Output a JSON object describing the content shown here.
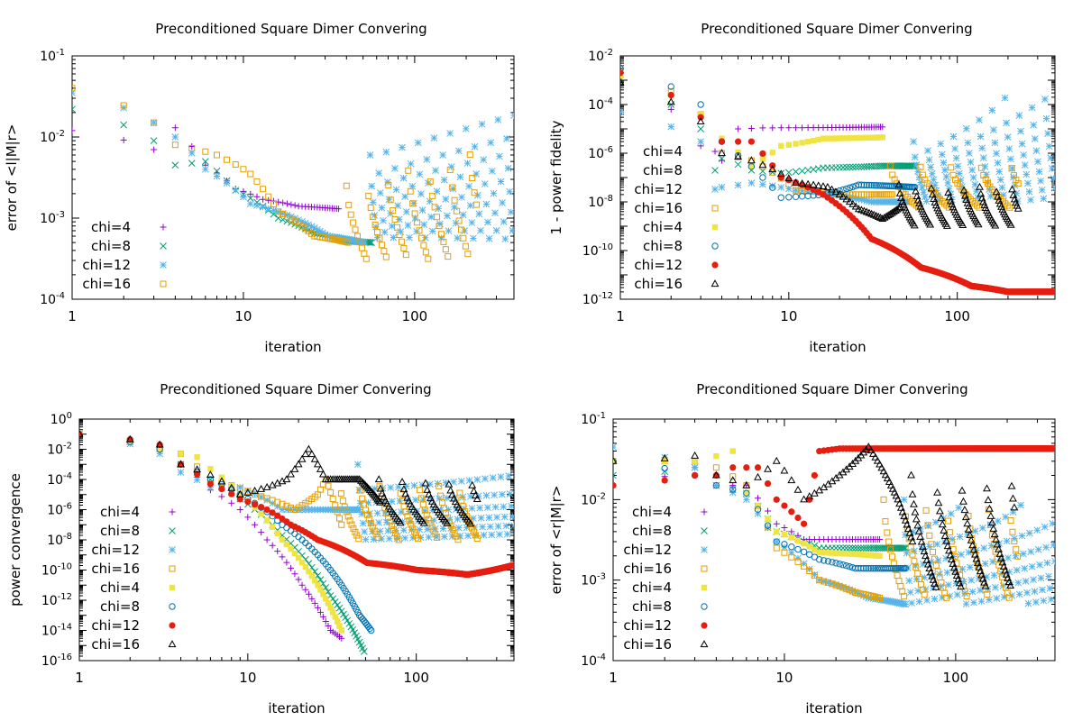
{
  "chart_data": [
    {
      "type": "scatter",
      "title": "Preconditioned Square Dimer Convering",
      "xlabel": "iteration",
      "ylabel": "error of <l|M|r>",
      "xscale": "log",
      "yscale": "log",
      "xlim": [
        1,
        380
      ],
      "ylim": [
        0.0001,
        0.1
      ],
      "xticks": [
        {
          "v": 1,
          "t": "1"
        },
        {
          "v": 10,
          "t": "10"
        },
        {
          "v": 100,
          "t": "100"
        }
      ],
      "yticks": [
        {
          "e": -4
        },
        {
          "e": -3
        },
        {
          "e": -2
        },
        {
          "e": -1
        }
      ],
      "legend_position": "bottom-left",
      "series": [
        {
          "name": "chi=4",
          "marker": "plus",
          "color": "#9400d3",
          "trend": "0:1.2e-2,2:7e-3,3:1.3e-2,5:4.5e-3,8:2.3e-3,12:1.7e-3,20:1.4e-3,35:1.3e-3"
        },
        {
          "name": "chi=8",
          "marker": "x",
          "color": "#009e73",
          "trend": "0:2.2e-2,2:9e-3,3:4.5e-3,5:5e-3,8:2.2e-3,15:1e-3,25:6.5e-4,40:5.2e-4,55:5e-4"
        },
        {
          "name": "chi=12",
          "marker": "star",
          "color": "#56b4e9",
          "trend": "0:3.5e-2,2:1.5e-2,3:1e-2,5:4e-3,10:1.5e-3,30:6e-4,50:5e-4",
          "osc": [
            {
              "s": 55,
              "e": 380,
              "p": 18,
              "hi": 0.006,
              "lo": 0.0005,
              "n": 100,
              "hiEnd": 0.04
            }
          ]
        },
        {
          "name": "chi=16",
          "marker": "square",
          "color": "#e69f00",
          "trend": "0:4e-2,2:1.5e-2,3:8e-3,6:6e-3,10:3.5e-3,15:1.2e-3,25:6e-4,40:5e-4",
          "osc": [
            {
              "s": 40,
              "e": 230,
              "p": 30,
              "hi": 0.0025,
              "lo": 0.0003,
              "n": 60,
              "hiEnd": 0.008
            }
          ]
        }
      ]
    },
    {
      "type": "scatter",
      "title": "Preconditioned Square Dimer Convering",
      "xlabel": "iteration",
      "ylabel": "1 - power fidelity",
      "xscale": "log",
      "yscale": "log",
      "xlim": [
        1,
        380
      ],
      "ylim": [
        1e-12,
        0.01
      ],
      "xticks": [
        {
          "v": 1,
          "t": "1"
        },
        {
          "v": 10,
          "t": "10"
        },
        {
          "v": 100,
          "t": "100"
        }
      ],
      "yticks": [
        {
          "e": -12
        },
        {
          "e": -10
        },
        {
          "e": -8
        },
        {
          "e": -6
        },
        {
          "e": -4
        },
        {
          "e": -2
        }
      ],
      "legend_position": "bottom-left",
      "series": [
        {
          "name": "chi=4",
          "marker": "plus",
          "color": "#9400d3",
          "trend": "0:2e-3,2:2e-6,3:5e-7,4:1e-5,6:1.1e-5,35:1.2e-5"
        },
        {
          "name": "chi=8",
          "marker": "x",
          "color": "#009e73",
          "trend": "0:1e-3,2:1e-5,3:6e-7,5:2e-7,8:1.5e-7,15:2.5e-7,35:3e-7,55:3e-7"
        },
        {
          "name": "chi=12",
          "marker": "star",
          "color": "#56b4e9",
          "trend": "0:5e-5,2:3e-6,3:4e-8,5:6e-8,10:3e-8,30:1e-8,50:1e-8",
          "osc": [
            {
              "s": 55,
              "e": 380,
              "p": 30,
              "hi": 3e-06,
              "lo": 1e-08,
              "n": 100,
              "hiEnd": 0.003
            }
          ]
        },
        {
          "name": "chi=16",
          "marker": "square",
          "color": "#e69f00",
          "trend": "0:3e-3,2:4e-5,3:1e-6,5:5e-7,10:3e-8,20:2e-8,40:2e-8",
          "osc": [
            {
              "s": 40,
              "e": 230,
              "p": 45,
              "hi": 3e-07,
              "lo": 5e-09,
              "n": 60
            }
          ]
        },
        {
          "name": "chi=4",
          "marker": "square_fill",
          "color": "#f0e442",
          "trend": "0:1.5e-3,2:4e-5,3:4e-6,5:3e-7,8:2e-6,15:4e-6,35:4.5e-6"
        },
        {
          "name": "chi=8",
          "marker": "circle",
          "color": "#0072b2",
          "trend": "0:3e-3,2:1e-4,3:3e-6,4:8e-7,6:1e-7,8:1.5e-8,15:2e-8,25:5e-8,55:4e-8"
        },
        {
          "name": "chi=12",
          "marker": "circle_fill",
          "color": "#e51e10",
          "trend": "0:2e-3,2:3e-5,3:3e-6,5:3e-6,8:1e-7,15:2e-8,20:5e-9,30:3e-10,60:2e-11,120:3.5e-12,200:2e-12,370:2e-12"
        },
        {
          "name": "chi=16",
          "marker": "triangle",
          "color": "#000000",
          "trend": "0:8e-4,2:2e-5,3:1e-6,5:5e-7,10:6e-8,16:4e-8,25:5e-9,35:2e-9,45:6e-9",
          "osc": [
            {
              "s": 45,
              "e": 230,
              "p": 25,
              "hi": 5e-08,
              "lo": 1e-09,
              "n": 100
            }
          ]
        }
      ]
    },
    {
      "type": "scatter",
      "title": "Preconditioned Square Dimer Convering",
      "xlabel": "iteration",
      "ylabel": "power convergence",
      "xscale": "log",
      "yscale": "log",
      "xlim": [
        1,
        380
      ],
      "ylim": [
        1e-16,
        1
      ],
      "xticks": [
        {
          "v": 1,
          "t": "1"
        },
        {
          "v": 10,
          "t": "10"
        },
        {
          "v": 100,
          "t": "100"
        }
      ],
      "yticks": [
        {
          "e": -16
        },
        {
          "e": -14
        },
        {
          "e": -12
        },
        {
          "e": -10
        },
        {
          "e": -8
        },
        {
          "e": -6
        },
        {
          "e": -4
        },
        {
          "e": -2
        },
        {
          "e": 0
        }
      ],
      "legend_position": "bottom-left",
      "series": [
        {
          "name": "chi=4",
          "marker": "plus",
          "color": "#9400d3",
          "trend": "0:0.1,2:1e-2,3:1e-3,5:2e-5,8:1e-6,12:1e-8,20:1e-11,30:1e-14,35:3e-15"
        },
        {
          "name": "chi=8",
          "marker": "x",
          "color": "#009e73",
          "trend": "0:0.1,2:1e-2,3:1e-3,5:1e-4,8:5e-6,15:2e-8,30:2e-12,48:4e-16"
        },
        {
          "name": "chi=12",
          "marker": "star",
          "color": "#56b4e9",
          "trend": "0:0.1,2:5e-3,3:3e-4,5:3e-5,8:3e-5,15:1e-6,30:1e-6,45:1e-6",
          "osc": [
            {
              "s": 45,
              "e": 380,
              "p": 17,
              "hi": 0.001,
              "lo": 1e-08,
              "n": 120
            }
          ]
        },
        {
          "name": "chi=16",
          "marker": "square",
          "color": "#e69f00",
          "trend": "0:0.1,2:1e-2,3:5e-3,5:1e-4,10:1e-5,18:1e-6,25:1e-5,28:1e-4,35:1e-7",
          "osc": [
            {
              "s": 35,
              "e": 230,
              "p": 28,
              "hi": 0.0001,
              "lo": 1e-08,
              "n": 80
            }
          ]
        },
        {
          "name": "chi=4",
          "marker": "square_fill",
          "color": "#f0e442",
          "trend": "0:0.1,2:1e-2,3:5e-3,4:3e-3,5:5e-4,8:1e-5,15:1e-8,25:1e-11,35:1e-14"
        },
        {
          "name": "chi=8",
          "marker": "circle",
          "color": "#0072b2",
          "trend": "0:0.1,2:1e-2,3:1e-3,5:1e-4,8:1e-5,15:1e-7,30:1e-10,45:1e-13,53:1e-14"
        },
        {
          "name": "chi=12",
          "marker": "circle_fill",
          "color": "#e51e10",
          "trend": "0:0.1,2:2e-2,3:1e-3,5:5e-5,8:5e-6,12:1e-6,17:1e-7,25:1e-8,50:3e-10,100:1e-10,200:5e-11,370:2e-10"
        },
        {
          "name": "chi=16",
          "marker": "triangle",
          "color": "#000000",
          "trend": "0:0.1,2:2e-2,3:1e-3,5:2e-4,8:1e-5,12:3e-5,16:1e-4,22:1e-2,28:1e-4,45:1e-4,60:3e-6",
          "osc": [
            {
              "s": 60,
              "e": 230,
              "p": 40,
              "hi": 0.0001,
              "lo": 1e-07,
              "n": 60
            }
          ]
        }
      ]
    },
    {
      "type": "scatter",
      "title": "Preconditioned Square Dimer Convering",
      "xlabel": "iteration",
      "ylabel": "error of <r|M|r>",
      "xscale": "log",
      "yscale": "log",
      "xlim": [
        1,
        380
      ],
      "ylim": [
        0.0001,
        0.1
      ],
      "xticks": [
        {
          "v": 1,
          "t": "1"
        },
        {
          "v": 10,
          "t": "10"
        },
        {
          "v": 100,
          "t": "100"
        }
      ],
      "yticks": [
        {
          "e": -4
        },
        {
          "e": -3
        },
        {
          "e": -2
        },
        {
          "e": -1
        }
      ],
      "legend_position": "bottom-left",
      "series": [
        {
          "name": "chi=4",
          "marker": "plus",
          "color": "#9400d3",
          "trend": "0:1.5e-2,2:2.5e-2,3:1.5e-2,5:1.5e-2,8:5e-3,12:3.2e-3,35:3.2e-3"
        },
        {
          "name": "chi=8",
          "marker": "x",
          "color": "#009e73",
          "trend": "0:2e-2,2:2.5e-2,3:1.5e-2,5:1.2e-2,8:4e-3,15:2.5e-3,50:2.5e-3"
        },
        {
          "name": "chi=12",
          "marker": "star",
          "color": "#56b4e9",
          "trend": "0:4.5e-2,2:2.5e-2,3:1.5e-2,5:1e-2,8:3e-3,15:1e-3,30:6e-4,50:5e-4",
          "osc": [
            {
              "s": 50,
              "e": 380,
              "p": 17,
              "hi": 0.01,
              "lo": 0.0005,
              "n": 120
            }
          ]
        },
        {
          "name": "chi=16",
          "marker": "square",
          "color": "#e69f00",
          "trend": "0:3e-2,2:3e-2,3:2.5e-2,5:1.5e-2,8:2.5e-3,15:1e-3,25:7e-4,35:6e-4",
          "osc": [
            {
              "s": 38,
              "e": 230,
              "p": 30,
              "hi": 0.01,
              "lo": 0.0006,
              "n": 80
            }
          ]
        },
        {
          "name": "chi=4",
          "marker": "square_fill",
          "color": "#f0e442",
          "trend": "0:3e-2,2:3e-2,4:4e-2,5:1.2e-2,8:4e-3,15:2.2e-3,35:2e-3"
        },
        {
          "name": "chi=8",
          "marker": "circle",
          "color": "#0072b2",
          "trend": "0:3e-2,2:2e-2,3:1.5e-2,5:1.2e-2,8:3e-3,15:1.8e-3,25:1.4e-3,50:1.4e-3"
        },
        {
          "name": "chi=12",
          "marker": "circle_fill",
          "color": "#e51e10",
          "trend": "0:1.5e-2,2:2e-2,3:2e-2,4:2.5e-2,6:2.5e-2,8:1e-2,12:5e-3,15:4e-2,20:4.3e-2,370:4.3e-2"
        },
        {
          "name": "chi=16",
          "marker": "triangle",
          "color": "#000000",
          "trend": "0:3e-2,2:3.5e-2,3:2e-2,5:1.5e-2,8:3e-2,12:1e-2,20:2e-2,30:4.5e-2,45:1e-2,55:3e-3",
          "osc": [
            {
              "s": 55,
              "e": 220,
              "p": 40,
              "hi": 0.02,
              "lo": 0.0008,
              "n": 80
            }
          ]
        }
      ]
    }
  ]
}
